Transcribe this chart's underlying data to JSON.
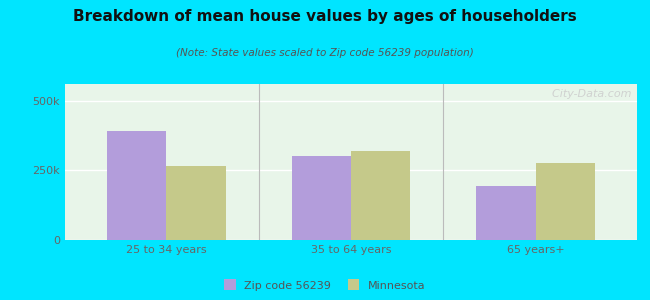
{
  "title": "Breakdown of mean house values by ages of householders",
  "subtitle": "(Note: State values scaled to Zip code 56239 population)",
  "categories": [
    "25 to 34 years",
    "35 to 64 years",
    "65 years+"
  ],
  "zip_values": [
    390000,
    300000,
    195000
  ],
  "state_values": [
    265000,
    320000,
    275000
  ],
  "ylim": [
    0,
    560000
  ],
  "yticks": [
    0,
    250000,
    500000
  ],
  "ytick_labels": [
    "0",
    "250k",
    "500k"
  ],
  "zip_color": "#b39ddb",
  "state_color": "#c5c98a",
  "background_outer": "#00e5ff",
  "background_inner": "#e8f5e9",
  "bar_width": 0.32,
  "legend_zip": "Zip code 56239",
  "legend_state": "Minnesota",
  "watermark": "  City-Data.com"
}
